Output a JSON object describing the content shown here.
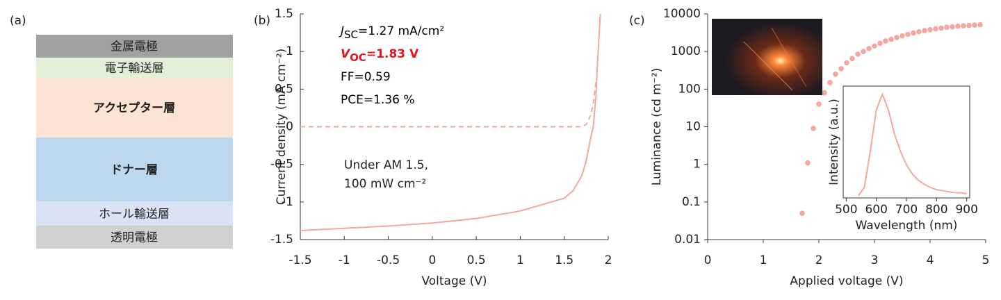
{
  "layer_stack": {
    "label": "(a)",
    "layers": [
      {
        "text": "金属電極",
        "color": "#a0a0a0",
        "text_color": "#000000"
      },
      {
        "text": "電子輸送層",
        "color": "#e2efd9",
        "text_color": "#000000"
      },
      {
        "text": "アクセプター層",
        "color": "#fbe4d5",
        "text_color": "#e8401c"
      },
      {
        "text": "ドナー層",
        "color": "#bdd7ee",
        "text_color": "#4472c4"
      },
      {
        "text": "ホール輸送層",
        "color": "#dae3f3",
        "text_color": "#000000"
      },
      {
        "text": "透明電極",
        "color": "#d0d0d0",
        "text_color": "#000000"
      }
    ]
  },
  "chart_data": [
    {
      "type": "line",
      "label": "(b)",
      "xlabel": "Voltage (V)",
      "ylabel": "Current density (mA cm⁻²)",
      "xlim": [
        -1.5,
        2
      ],
      "xticks": [
        -1.5,
        -1,
        -0.5,
        0,
        0.5,
        1,
        1.5,
        2
      ],
      "ylim": [
        -1.5,
        1.5
      ],
      "yticks": [
        -1.5,
        -1,
        -0.5,
        0,
        0.5,
        1,
        1.5
      ],
      "x": [
        -1.5,
        -1,
        -0.5,
        0,
        0.5,
        1,
        1.5,
        1.6,
        1.7,
        1.75,
        1.8,
        1.83,
        1.86,
        1.88,
        1.91
      ],
      "series": [
        {
          "color": "#f4a6a0",
          "linestyle": "solid",
          "values": [
            -1.38,
            -1.35,
            -1.32,
            -1.28,
            -1.22,
            -1.12,
            -0.95,
            -0.85,
            -0.65,
            -0.45,
            -0.15,
            0,
            0.4,
            0.9,
            1.5
          ]
        },
        {
          "color": "#f4a6a0",
          "linestyle": "dashed",
          "values": [
            0,
            0,
            0,
            0,
            0,
            0,
            0,
            0,
            0,
            0.03,
            0.15,
            0.3,
            0.6,
            null,
            null
          ]
        }
      ],
      "metrics": [
        {
          "symbol": "J",
          "sub": "SC",
          "text": "=1.27 mA/cm²",
          "color": "#000000",
          "bold": false
        },
        {
          "symbol": "V",
          "sub": "OC",
          "text": "=1.83 V",
          "color": "#e8141c",
          "bold": true
        },
        {
          "text": "FF=0.59",
          "color": "#000000",
          "bold": false
        },
        {
          "text": "PCE=1.36 %",
          "color": "#000000",
          "bold": false
        }
      ],
      "conditions": [
        "Under AM 1.5,",
        "100 mW cm⁻²"
      ]
    },
    {
      "type": "scatter",
      "label": "(c)",
      "xlabel": "Applied voltage (V)",
      "ylabel": "Luminance (cd m⁻²)",
      "xlim": [
        0,
        5
      ],
      "xticks": [
        0,
        1,
        2,
        3,
        4,
        5
      ],
      "ylog": true,
      "ylim": [
        0.01,
        10000
      ],
      "yticks": [
        0.01,
        0.1,
        1,
        10,
        100,
        1000,
        10000
      ],
      "x": [
        1.7,
        1.8,
        1.9,
        2.0,
        2.1,
        2.2,
        2.3,
        2.4,
        2.5,
        2.6,
        2.7,
        2.8,
        2.9,
        3.0,
        3.1,
        3.2,
        3.3,
        3.4,
        3.5,
        3.6,
        3.7,
        3.8,
        3.9,
        4.0,
        4.1,
        4.2,
        4.3,
        4.4,
        4.5,
        4.6,
        4.7,
        4.8,
        4.9
      ],
      "series": [
        {
          "color": "#f4a6a0",
          "values": [
            0.05,
            1.1,
            9,
            40,
            80,
            150,
            250,
            350,
            500,
            650,
            850,
            1000,
            1200,
            1400,
            1650,
            1900,
            2100,
            2350,
            2600,
            2850,
            3100,
            3350,
            3600,
            3800,
            4000,
            4200,
            4400,
            4550,
            4700,
            4850,
            4950,
            5050,
            5150
          ]
        }
      ]
    },
    {
      "type": "line",
      "xlabel": "Wavelength (nm)",
      "ylabel": "Intensity (a.u.)",
      "xlim": [
        490,
        910
      ],
      "xticks": [
        500,
        600,
        700,
        800,
        900
      ],
      "ylim": [
        0,
        1.08
      ],
      "x": [
        540,
        560,
        580,
        600,
        620,
        640,
        660,
        680,
        700,
        720,
        740,
        760,
        780,
        800,
        820,
        840,
        860,
        880,
        900
      ],
      "series": [
        {
          "color": "#f4a6a0",
          "linestyle": "solid",
          "values": [
            0.02,
            0.1,
            0.45,
            0.85,
            1.0,
            0.85,
            0.62,
            0.45,
            0.32,
            0.23,
            0.17,
            0.13,
            0.1,
            0.08,
            0.07,
            0.06,
            0.05,
            0.05,
            0.04
          ]
        }
      ]
    }
  ]
}
